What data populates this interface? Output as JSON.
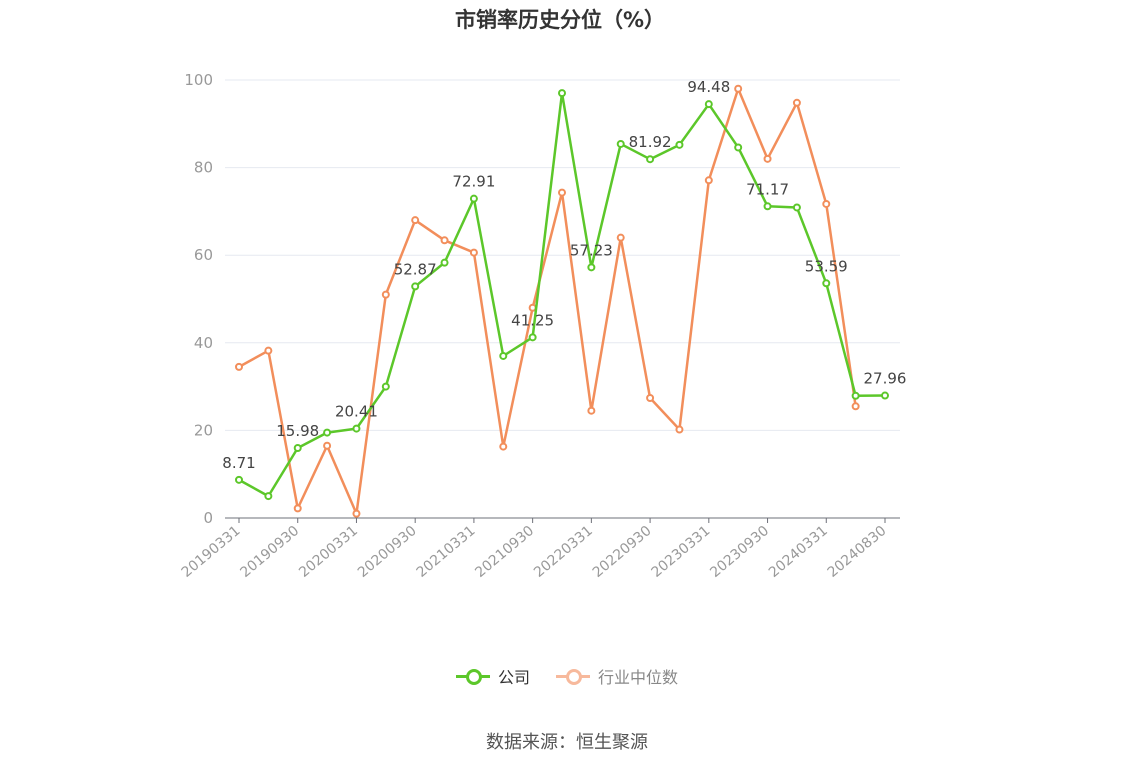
{
  "title": "市销率历史分位（%）",
  "source": "数据来源：恒生聚源",
  "colors": {
    "company": "#5cc72a",
    "industry": "#f28e5b",
    "industry_legend": "#f7b99c",
    "grid": "#e6e9f0",
    "axis": "#6e7079",
    "tick_text": "#999999"
  },
  "chart_data": {
    "type": "line",
    "title": "市销率历史分位（%）",
    "xlabel": "",
    "ylabel": "",
    "ylim": [
      0,
      100
    ],
    "yticks": [
      0,
      20,
      40,
      60,
      80,
      100
    ],
    "grid": true,
    "legend": "bottom",
    "x": [
      "20190331",
      "20190630",
      "20190930",
      "20191231",
      "20200331",
      "20200630",
      "20200930",
      "20201231",
      "20210331",
      "20210630",
      "20210930",
      "20211231",
      "20220331",
      "20220630",
      "20220930",
      "20221231",
      "20230331",
      "20230630",
      "20230930",
      "20231231",
      "20240331",
      "20240630",
      "20240830"
    ],
    "x_tick_labels": [
      "20190331",
      "20190930",
      "20200331",
      "20200930",
      "20210331",
      "20210930",
      "20220331",
      "20220930",
      "20230331",
      "20230930",
      "20240331",
      "20240830"
    ],
    "series": [
      {
        "name": "公司",
        "values": [
          8.71,
          5.0,
          15.98,
          19.5,
          20.41,
          30.0,
          52.87,
          58.3,
          72.91,
          37.0,
          41.25,
          97.0,
          57.23,
          85.4,
          81.92,
          85.2,
          94.48,
          84.6,
          71.17,
          70.9,
          53.59,
          27.9,
          27.96
        ],
        "labels": [
          "8.71",
          "",
          "15.98",
          "",
          "20.41",
          "",
          "52.87",
          "",
          "72.91",
          "",
          "41.25",
          "",
          "57.23",
          "",
          "81.92",
          "",
          "94.48",
          "",
          "71.17",
          "",
          "53.59",
          "",
          "27.96"
        ]
      },
      {
        "name": "行业中位数",
        "values": [
          34.5,
          38.2,
          2.2,
          16.5,
          1.0,
          51.0,
          68.0,
          63.4,
          60.6,
          16.3,
          48.0,
          74.3,
          24.5,
          64.0,
          27.4,
          20.2,
          77.1,
          98.0,
          82.0,
          94.8,
          71.7,
          25.5,
          null
        ]
      }
    ]
  }
}
